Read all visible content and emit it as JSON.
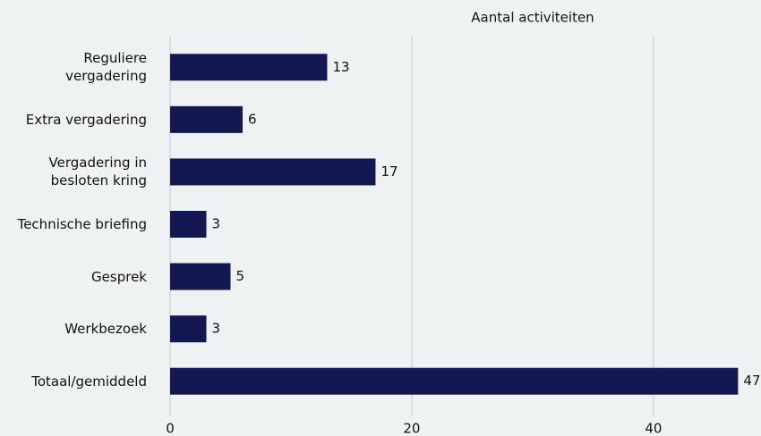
{
  "chart_data": {
    "type": "bar",
    "orientation": "horizontal",
    "title": "Aantal activiteiten",
    "categories": [
      "Reguliere vergadering",
      "Extra vergadering",
      "Vergadering in besloten kring",
      "Technische briefing",
      "Gesprek",
      "Werkbezoek",
      "Totaal/gemiddeld"
    ],
    "values": [
      13,
      6,
      17,
      3,
      5,
      3,
      47
    ],
    "color": "#141852",
    "xlim": [
      0,
      48.9
    ],
    "xticks": [
      0,
      20,
      40
    ],
    "grid": true
  }
}
